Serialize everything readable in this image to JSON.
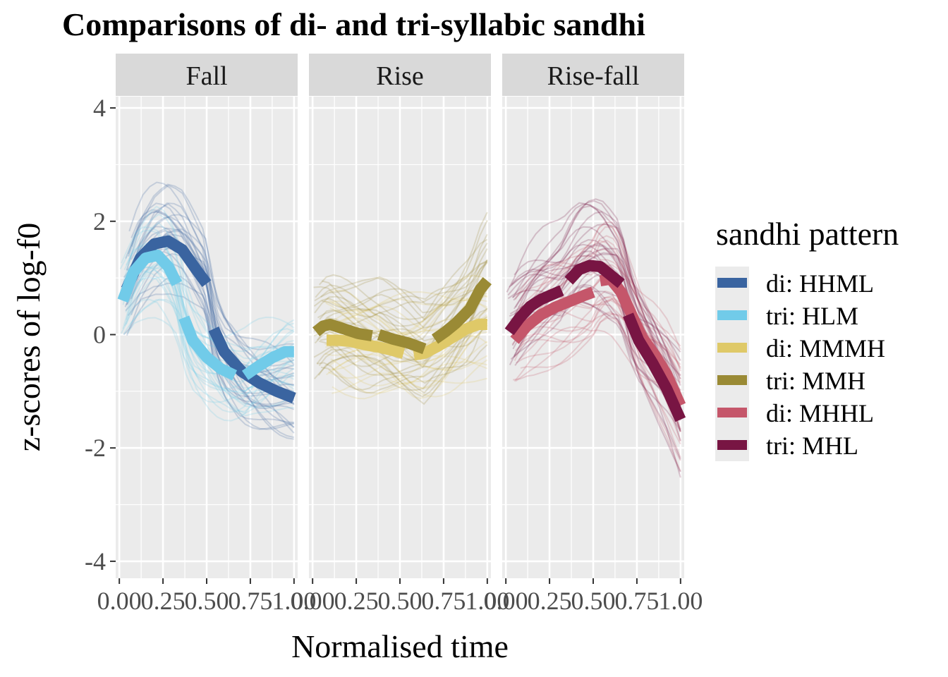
{
  "chart_data": {
    "type": "line",
    "title": "Comparisons of di- and tri-syllabic sandhi",
    "xlabel": "Normalised time",
    "ylabel": "z-scores of log-f0",
    "xlim": [
      0,
      1
    ],
    "ylim": [
      -4.3,
      4.2
    ],
    "x_ticks": [
      0,
      0.25,
      0.5,
      0.75,
      1.0
    ],
    "x_tick_labels": [
      "0.00",
      "0.25",
      "0.50",
      "0.75",
      "1.00"
    ],
    "y_ticks": [
      -4,
      -2,
      0,
      2,
      4
    ],
    "y_tick_labels": [
      "-4",
      "-2",
      "0",
      "2",
      "4"
    ],
    "grid": true,
    "legend": {
      "title": "sandhi pattern",
      "placement": "right",
      "entries": [
        {
          "label": "di: HHML",
          "color": "#3a64a0"
        },
        {
          "label": "tri: HLM",
          "color": "#71cbe9"
        },
        {
          "label": "di: MMMH",
          "color": "#dfc968"
        },
        {
          "label": "tri: MMH",
          "color": "#9a8a35"
        },
        {
          "label": "di: MHHL",
          "color": "#c5566a"
        },
        {
          "label": "tri: MHL",
          "color": "#781543"
        }
      ]
    },
    "facets": [
      {
        "label": "Fall",
        "series": [
          {
            "name": "di: HHML",
            "color": "#3a64a0",
            "x": [
              0.04,
              0.12,
              0.2,
              0.28,
              0.36,
              0.44,
              0.5,
              0.54,
              0.6,
              0.7,
              0.8,
              0.9,
              1.0
            ],
            "y": [
              0.8,
              1.35,
              1.6,
              1.65,
              1.5,
              1.15,
              0.9,
              0.1,
              -0.3,
              -0.65,
              -0.85,
              -1.0,
              -1.12
            ],
            "segments": [
              [
                0.04,
                0.5
              ],
              [
                0.54,
                1.0
              ]
            ]
          },
          {
            "name": "tri: HLM",
            "color": "#71cbe9",
            "x": [
              0.02,
              0.08,
              0.15,
              0.22,
              0.28,
              0.33,
              0.37,
              0.42,
              0.5,
              0.58,
              0.66,
              0.72,
              0.8,
              0.88,
              0.95,
              1.0
            ],
            "y": [
              0.6,
              1.1,
              1.35,
              1.4,
              1.2,
              0.9,
              0.3,
              -0.1,
              -0.4,
              -0.6,
              -0.72,
              -0.72,
              -0.55,
              -0.4,
              -0.3,
              -0.3
            ],
            "segments": [
              [
                0.02,
                0.33
              ],
              [
                0.37,
                0.66
              ],
              [
                0.72,
                1.0
              ]
            ]
          }
        ]
      },
      {
        "label": "Rise",
        "series": [
          {
            "name": "di: MMMH",
            "color": "#dfc968",
            "x": [
              0.08,
              0.15,
              0.22,
              0.3,
              0.38,
              0.46,
              0.52,
              0.58,
              0.64,
              0.72,
              0.8,
              0.88,
              0.95,
              1.0
            ],
            "y": [
              -0.1,
              -0.1,
              -0.12,
              -0.18,
              -0.22,
              -0.28,
              -0.33,
              -0.36,
              -0.33,
              -0.2,
              -0.05,
              0.1,
              0.18,
              0.18
            ],
            "segments": [
              [
                0.08,
                0.52
              ],
              [
                0.58,
                1.0
              ]
            ]
          },
          {
            "name": "tri: MMH",
            "color": "#9a8a35",
            "x": [
              0.02,
              0.06,
              0.1,
              0.18,
              0.26,
              0.34,
              0.38,
              0.46,
              0.55,
              0.64,
              0.7,
              0.76,
              0.82,
              0.9,
              0.96,
              1.0
            ],
            "y": [
              0.05,
              0.15,
              0.18,
              0.1,
              0.02,
              -0.02,
              0.0,
              -0.08,
              -0.15,
              -0.25,
              -0.08,
              0.05,
              0.2,
              0.45,
              0.8,
              0.95
            ],
            "segments": [
              [
                0.02,
                0.34
              ],
              [
                0.38,
                0.64
              ],
              [
                0.7,
                1.0
              ]
            ]
          }
        ]
      },
      {
        "label": "Rise-fall",
        "series": [
          {
            "name": "di: MHHL",
            "color": "#c5566a",
            "x": [
              0.05,
              0.12,
              0.2,
              0.28,
              0.36,
              0.44,
              0.5,
              0.54,
              0.6,
              0.66,
              0.72,
              0.78,
              0.85,
              0.92,
              1.0
            ],
            "y": [
              -0.1,
              0.15,
              0.35,
              0.48,
              0.58,
              0.68,
              0.75,
              0.95,
              0.98,
              0.75,
              0.35,
              -0.05,
              -0.35,
              -0.7,
              -1.25
            ],
            "segments": [
              [
                0.05,
                0.5
              ],
              [
                0.54,
                1.0
              ]
            ]
          },
          {
            "name": "tri: MHL",
            "color": "#781543",
            "x": [
              0.02,
              0.08,
              0.14,
              0.2,
              0.26,
              0.32,
              0.36,
              0.42,
              0.48,
              0.54,
              0.6,
              0.66,
              0.7,
              0.76,
              0.84,
              0.92,
              1.0
            ],
            "y": [
              0.05,
              0.3,
              0.5,
              0.62,
              0.7,
              0.78,
              0.95,
              1.15,
              1.22,
              1.2,
              1.05,
              0.9,
              0.35,
              -0.1,
              -0.5,
              -0.95,
              -1.5
            ],
            "segments": [
              [
                0.02,
                0.32
              ],
              [
                0.36,
                0.66
              ],
              [
                0.7,
                1.0
              ]
            ]
          }
        ]
      }
    ]
  }
}
